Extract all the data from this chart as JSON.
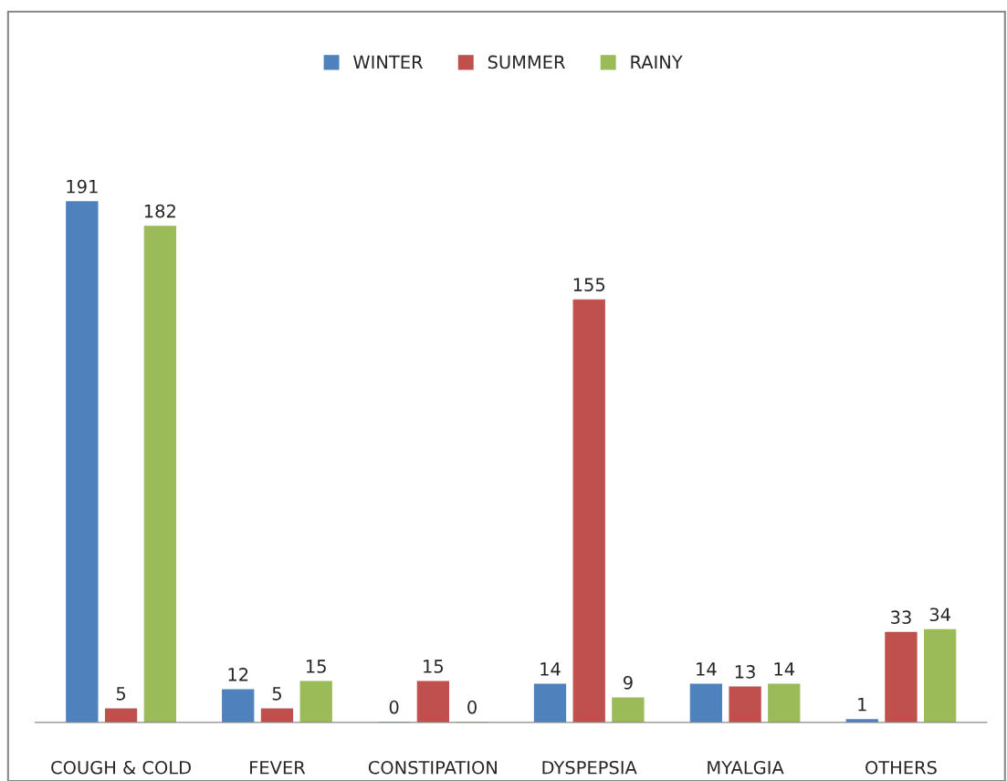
{
  "chart_data": {
    "type": "bar",
    "categories": [
      "COUGH & COLD",
      "FEVER",
      "CONSTIPATION",
      "DYSPEPSIA",
      "MYALGIA",
      "OTHERS"
    ],
    "series": [
      {
        "name": "WINTER",
        "color": "#4f81bd",
        "values": [
          191,
          12,
          0,
          14,
          14,
          1
        ]
      },
      {
        "name": "SUMMER",
        "color": "#c0504d",
        "values": [
          5,
          5,
          15,
          155,
          13,
          33
        ]
      },
      {
        "name": "RAINY",
        "color": "#9bbb59",
        "values": [
          182,
          15,
          0,
          9,
          14,
          34
        ]
      }
    ],
    "data_labels": true,
    "legend": "top",
    "grid": false
  }
}
